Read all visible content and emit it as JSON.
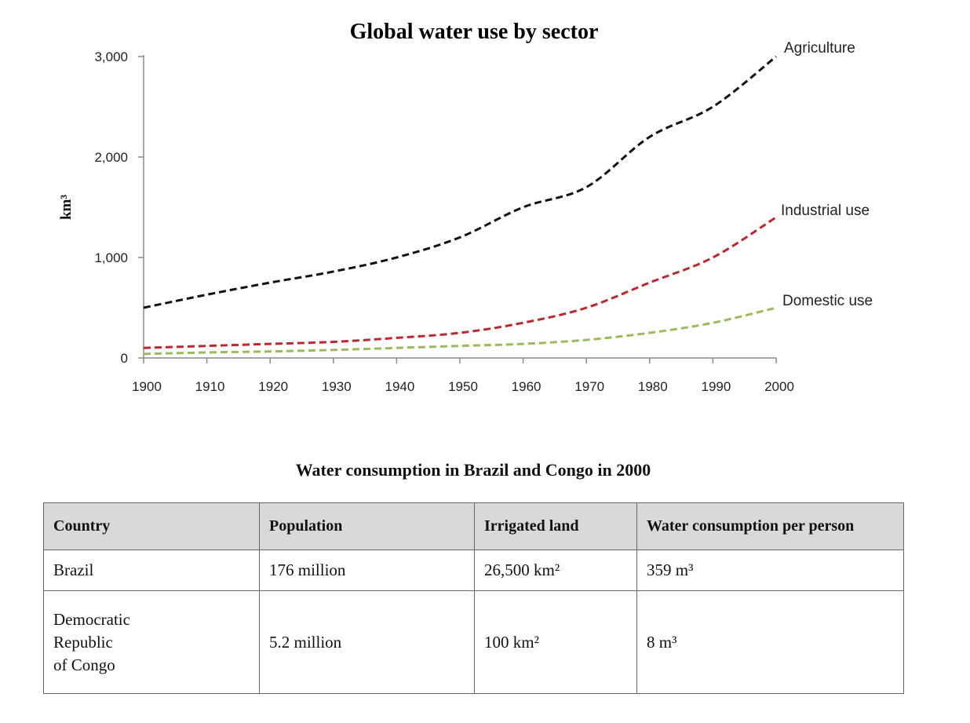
{
  "chart_data": {
    "type": "line",
    "title": "Global water use by sector",
    "ylabel": "km³",
    "xlabel": "",
    "x": [
      1900,
      1910,
      1920,
      1930,
      1940,
      1950,
      1960,
      1970,
      1980,
      1990,
      2000
    ],
    "xlim": [
      1900,
      2000
    ],
    "ylim": [
      0,
      3000
    ],
    "yticks": [
      0,
      1000,
      2000,
      3000
    ],
    "ytick_labels": [
      "0",
      "1,000",
      "2,000",
      "3,000"
    ],
    "xtick_labels": [
      "1900",
      "1910",
      "1920",
      "1930",
      "1940",
      "1950",
      "1960",
      "1970",
      "1980",
      "1990",
      "2000"
    ],
    "grid": false,
    "line_style": "dashed",
    "series": [
      {
        "name": "Agriculture",
        "color": "#111111",
        "values": [
          500,
          630,
          750,
          860,
          1000,
          1200,
          1500,
          1700,
          2200,
          2500,
          3000
        ]
      },
      {
        "name": "Industrial use",
        "color": "#c0262d",
        "values": [
          100,
          120,
          140,
          160,
          200,
          250,
          350,
          500,
          750,
          1000,
          1400
        ]
      },
      {
        "name": "Domestic use",
        "color": "#9bbb59",
        "values": [
          40,
          55,
          65,
          80,
          100,
          120,
          140,
          180,
          250,
          350,
          500
        ]
      }
    ]
  },
  "table": {
    "title": "Water consumption in Brazil and Congo in 2000",
    "headers": [
      "Country",
      "Population",
      "Irrigated land",
      "Water consumption per person"
    ],
    "rows": [
      [
        "Brazil",
        "176 million",
        "26,500 km²",
        "359 m³"
      ],
      [
        "Democratic\nRepublic\nof Congo",
        "5.2 million",
        "100 km²",
        "8 m³"
      ]
    ]
  }
}
